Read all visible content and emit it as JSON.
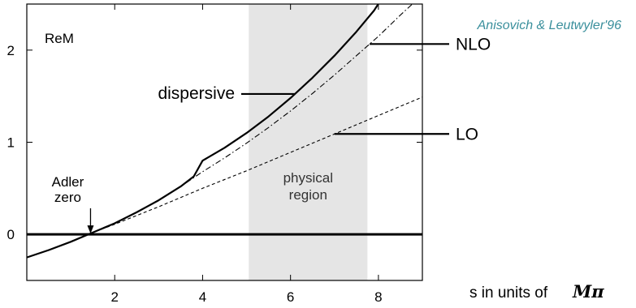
{
  "chart_data": {
    "type": "line",
    "credit": "Anisovich & Leutwyler'96",
    "panel_label": "ReM",
    "xlabel_prefix": "s in units of",
    "xlabel_symbol": "Mπ",
    "xlim": [
      0,
      9
    ],
    "ylim": [
      -0.5,
      2.5
    ],
    "x_ticks": [
      2,
      4,
      6,
      8
    ],
    "y_ticks": [
      0,
      1,
      2
    ],
    "shaded_region": {
      "x_start": 5.05,
      "x_end": 7.75,
      "label_line1": "physical",
      "label_line2": "region",
      "color": "#e5e5e5"
    },
    "reference_line_y": 0,
    "series": [
      {
        "name": "dispersive",
        "style": "solid",
        "x": [
          0,
          0.5,
          1,
          1.5,
          2,
          2.5,
          3,
          3.5,
          3.8,
          4,
          4.5,
          5,
          5.5,
          6,
          6.5,
          7,
          7.5,
          7.9,
          8.2,
          8.45
        ],
        "y": [
          -0.25,
          -0.17,
          -0.08,
          0.02,
          0.12,
          0.24,
          0.37,
          0.52,
          0.63,
          0.8,
          0.94,
          1.1,
          1.28,
          1.48,
          1.7,
          1.94,
          2.2,
          2.43,
          2.65,
          2.9
        ]
      },
      {
        "name": "NLO",
        "style": "dash-dot",
        "x": [
          0,
          0.5,
          1,
          1.5,
          2,
          2.5,
          3,
          3.5,
          4,
          4.5,
          5,
          5.5,
          6,
          6.5,
          7,
          7.5,
          8,
          8.5,
          9
        ],
        "y": [
          -0.25,
          -0.17,
          -0.08,
          0.02,
          0.12,
          0.24,
          0.37,
          0.52,
          0.68,
          0.83,
          0.99,
          1.16,
          1.34,
          1.53,
          1.73,
          1.94,
          2.15,
          2.38,
          2.6
        ]
      },
      {
        "name": "LO",
        "style": "dashed",
        "x": [
          0,
          0.5,
          1,
          1.5,
          2,
          3,
          4,
          5,
          6,
          7,
          8,
          9
        ],
        "y": [
          -0.25,
          -0.17,
          -0.08,
          0.02,
          0.11,
          0.3,
          0.5,
          0.69,
          0.89,
          1.09,
          1.29,
          1.49
        ]
      }
    ],
    "annotations": [
      {
        "text": "dispersive",
        "x_at": 6.1,
        "label_anchor": "left"
      },
      {
        "text": "NLO",
        "x_at": 7.8,
        "label_anchor": "right"
      },
      {
        "text": "LO",
        "x_at": 7.0,
        "label_anchor": "right"
      },
      {
        "text": "Adler",
        "text2": "zero",
        "x_at": 1.45,
        "label_anchor": "arrow"
      }
    ]
  }
}
